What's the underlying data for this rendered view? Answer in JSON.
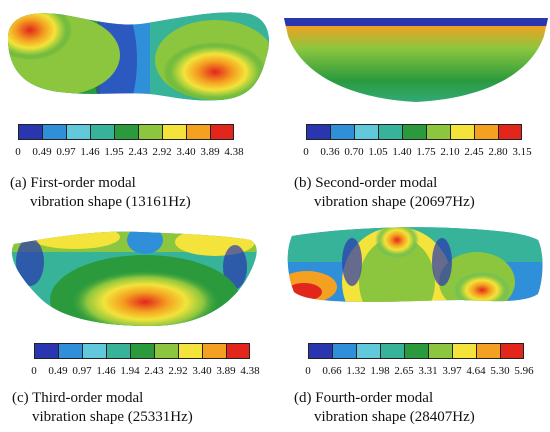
{
  "panels": [
    {
      "caption_line1": "(a) First-order modal",
      "caption_line2": "vibration shape (13161Hz)",
      "ticks": [
        "0",
        "0.49",
        "0.97",
        "1.46",
        "1.95",
        "2.43",
        "2.92",
        "3.40",
        "3.89",
        "4.38"
      ]
    },
    {
      "caption_line1": "(b) Second-order modal",
      "caption_line2": "vibration shape (20697Hz)",
      "ticks": [
        "0",
        "0.36",
        "0.70",
        "1.05",
        "1.40",
        "1.75",
        "2.10",
        "2.45",
        "2.80",
        "3.15"
      ]
    },
    {
      "caption_line1": "(c) Third-order modal",
      "caption_line2": "vibration shape (25331Hz)",
      "ticks": [
        "0",
        "0.49",
        "0.97",
        "1.46",
        "1.94",
        "2.43",
        "2.92",
        "3.40",
        "3.89",
        "4.38"
      ]
    },
    {
      "caption_line1": "(d)  Fourth-order modal",
      "caption_line2": "vibration shape (28407Hz)",
      "ticks": [
        "0",
        "0.66",
        "1.32",
        "1.98",
        "2.65",
        "3.31",
        "3.97",
        "4.64",
        "5.30",
        "5.96"
      ]
    }
  ],
  "colormap": [
    "#2a36b0",
    "#2f8fd8",
    "#62c9dd",
    "#37b39a",
    "#2a9a3d",
    "#8cc63e",
    "#f3e33a",
    "#f4a021",
    "#e2261c"
  ]
}
